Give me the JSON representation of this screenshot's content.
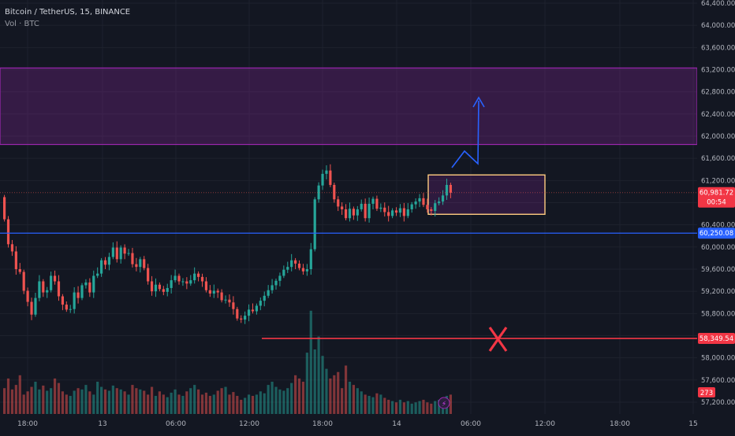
{
  "header": {
    "symbol_line": "Bitcoin / TetherUS, 15, BINANCE",
    "volume_line": "Vol · BTC"
  },
  "colors": {
    "background": "#131722",
    "up": "#26a69a",
    "down": "#ef5350",
    "zone_purple": "#9c27b0",
    "zone_orange": "#ffcc80",
    "support_line": "#2962ff",
    "target_line": "#f23645",
    "arrow": "#2962ff"
  },
  "price_axis": {
    "labels": [
      "64,400.00",
      "64,000.00",
      "63,600.00",
      "63,200.00",
      "62,800.00",
      "62,400.00",
      "62,000.00",
      "61,600.00",
      "61,200.00",
      "60,800.00",
      "60,400.00",
      "60,000.00",
      "59,600.00",
      "59,200.00",
      "58,800.00",
      "58,400.00",
      "58,000.00",
      "57,600.00",
      "57,200.00"
    ],
    "min": 57200,
    "max": 64400
  },
  "time_axis": {
    "labels": [
      "18:00",
      "13",
      "06:00",
      "12:00",
      "18:00",
      "14",
      "06:00",
      "12:00",
      "18:00",
      "15"
    ]
  },
  "badges": {
    "current_price": "60,981.72",
    "countdown": "00:54",
    "support_price": "60,250.08",
    "target_price": "58,349.54",
    "volume": "273"
  },
  "levels": {
    "resistance_zone": [
      61850,
      63230
    ],
    "consolidation_box": [
      60590,
      61300
    ],
    "support": 60250.08,
    "target": 58349.54,
    "current": 60981.72
  },
  "chart_data": {
    "type": "candlestick",
    "interval": "15m",
    "candles_close": [
      60500,
      60050,
      59920,
      59600,
      59550,
      59210,
      59010,
      58780,
      59080,
      59380,
      59180,
      59220,
      59480,
      59380,
      59110,
      58960,
      58870,
      58880,
      59180,
      59080,
      59310,
      59360,
      59180,
      59480,
      59520,
      59760,
      59680,
      59820,
      59990,
      59780,
      59990,
      59880,
      59890,
      59690,
      59640,
      59780,
      59620,
      59380,
      59200,
      59320,
      59240,
      59190,
      59260,
      59400,
      59480,
      59380,
      59380,
      59340,
      59400,
      59520,
      59460,
      59380,
      59220,
      59160,
      59210,
      59180,
      59040,
      59050,
      59000,
      58880,
      58710,
      58690,
      58760,
      58870,
      58840,
      58940,
      59030,
      59120,
      59220,
      59310,
      59390,
      59480,
      59590,
      59640,
      59760,
      59700,
      59620,
      59560,
      59600,
      59960,
      60860,
      61110,
      61320,
      61380,
      61120,
      60860,
      60730,
      60680,
      60520,
      60690,
      60570,
      60680,
      60780,
      60520,
      60780,
      60870,
      60690,
      60710,
      60630,
      60560,
      60660,
      60620,
      60700,
      60560,
      60680,
      60770,
      60820,
      60880,
      60760,
      60680,
      60650,
      60790,
      60820,
      60930,
      61120,
      60980
    ],
    "volumes": [
      40,
      55,
      38,
      45,
      60,
      30,
      35,
      42,
      50,
      38,
      44,
      36,
      40,
      55,
      48,
      35,
      30,
      28,
      36,
      40,
      38,
      45,
      35,
      30,
      50,
      42,
      38,
      36,
      44,
      40,
      38,
      35,
      30,
      45,
      40,
      38,
      36,
      30,
      42,
      28,
      35,
      30,
      26,
      33,
      38,
      30,
      28,
      35,
      40,
      45,
      38,
      30,
      33,
      28,
      30,
      36,
      40,
      42,
      30,
      34,
      28,
      22,
      25,
      30,
      28,
      30,
      35,
      32,
      45,
      50,
      42,
      38,
      36,
      40,
      48,
      60,
      55,
      50,
      95,
      160,
      100,
      120,
      90,
      70,
      55,
      60,
      65,
      40,
      75,
      50,
      45,
      40,
      35,
      30,
      28,
      26,
      32,
      30,
      25,
      22,
      20,
      18,
      22,
      18,
      20,
      16,
      18,
      20,
      22,
      18,
      16,
      20,
      22,
      24,
      28,
      30
    ],
    "ylim": [
      57200,
      64400
    ]
  }
}
